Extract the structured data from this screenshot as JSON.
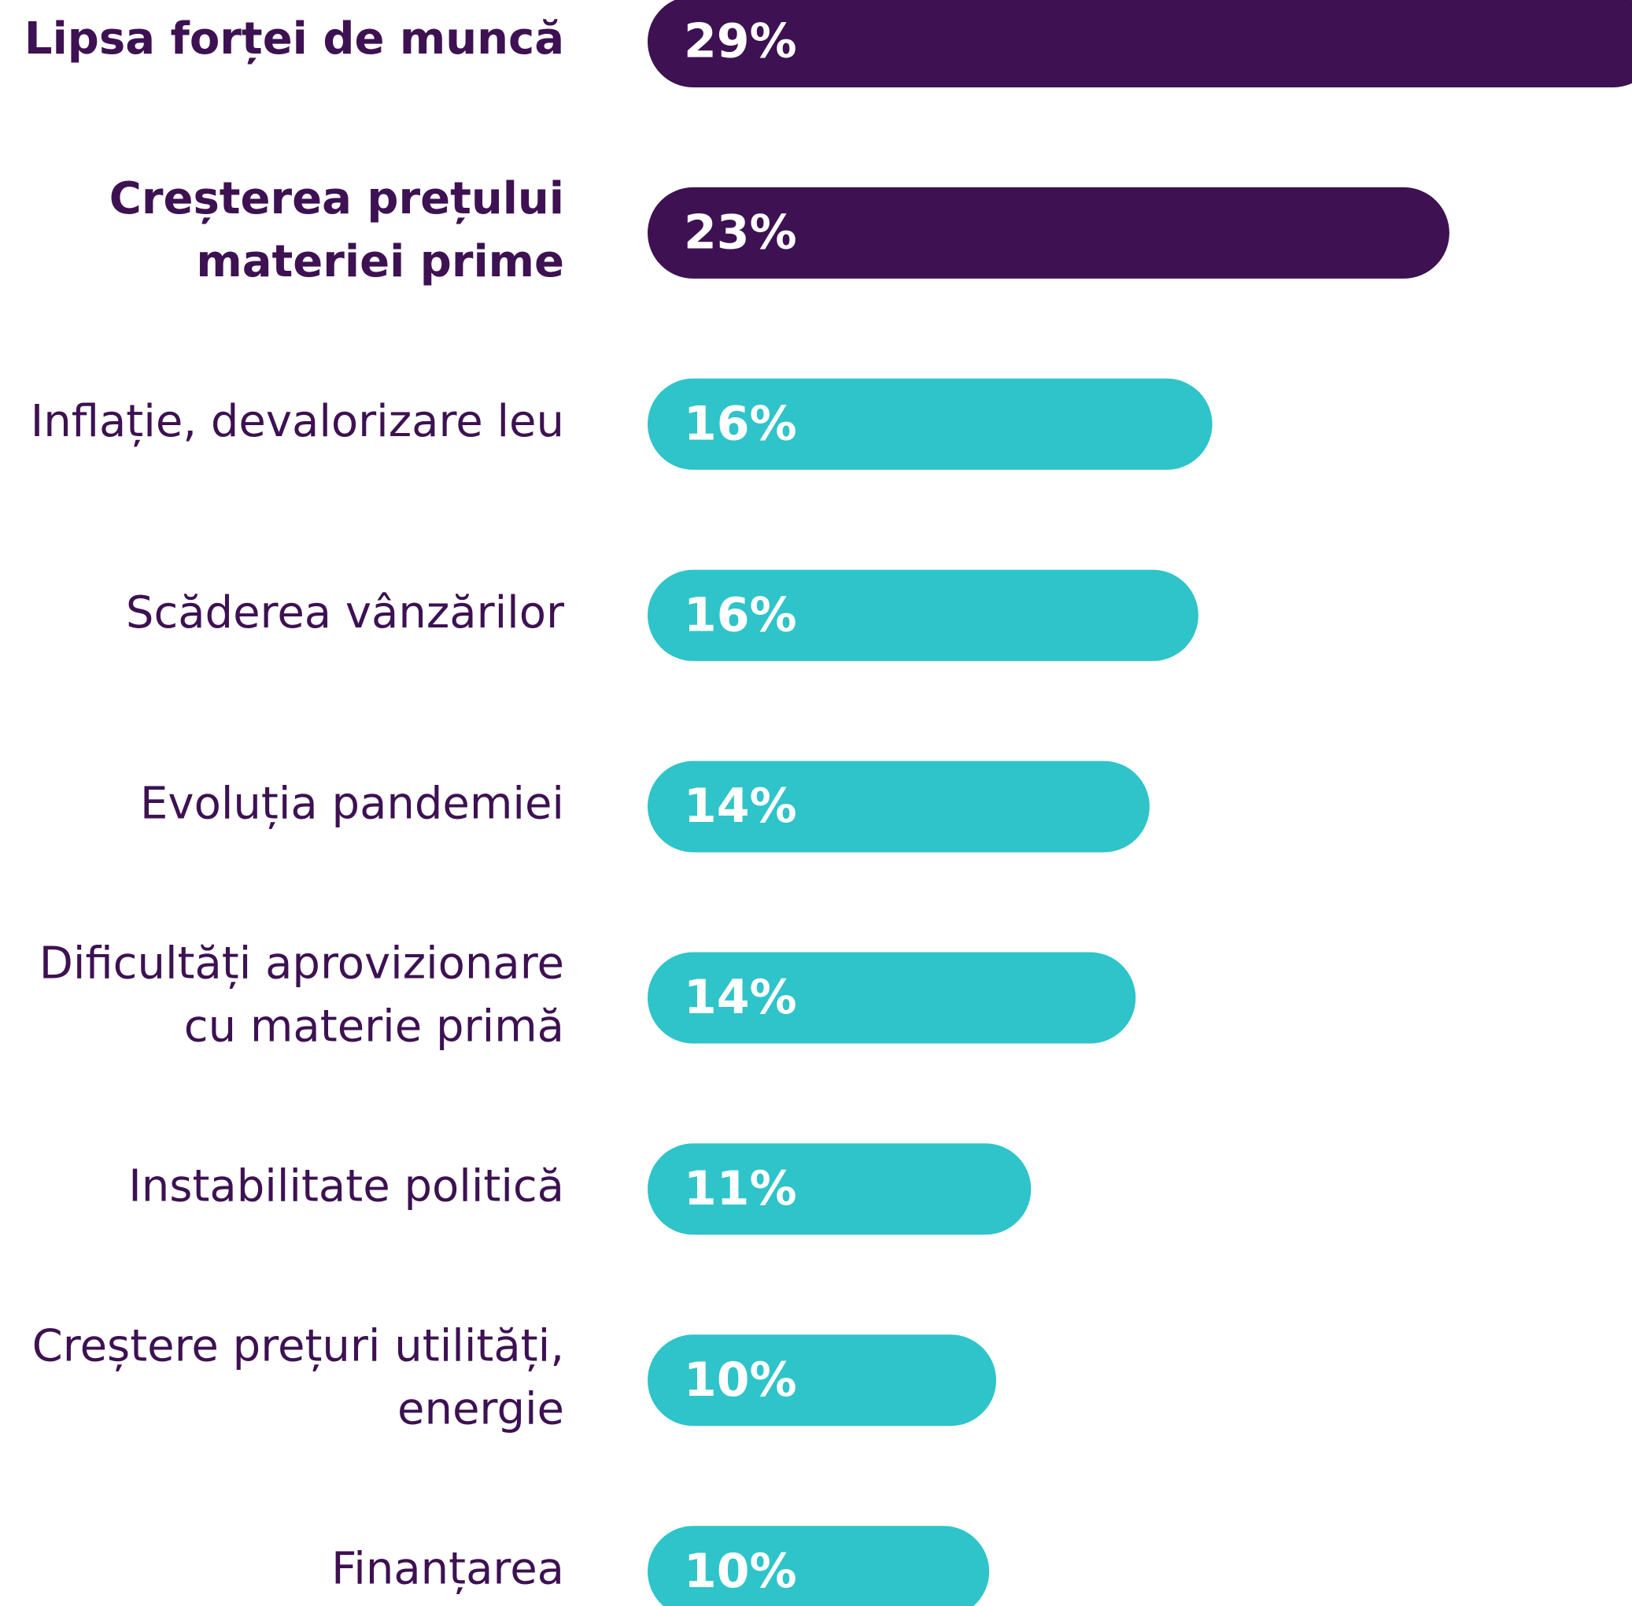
{
  "chart_data": {
    "type": "bar",
    "categories": [
      [
        "Lipsa forței de muncă"
      ],
      [
        "Creșterea prețului",
        "materiei prime"
      ],
      [
        "Inflație, devalorizare leu"
      ],
      [
        "Scăderea vânzărilor"
      ],
      [
        "Evoluția pandemiei"
      ],
      [
        "Dificultăți aprovizionare",
        "cu materie primă"
      ],
      [
        "Instabilitate politică"
      ],
      [
        "Creștere prețuri utilități,",
        "energie"
      ],
      [
        "Finanțarea"
      ]
    ],
    "values": [
      29,
      23,
      16.2,
      15.8,
      14.4,
      14.0,
      11.0,
      10.0,
      9.8
    ],
    "value_labels": [
      "29%",
      "23%",
      "16%",
      "16%",
      "14%",
      "14%",
      "11%",
      "10%",
      "10%"
    ],
    "colors": [
      "#3d1152",
      "#3d1152",
      "#2ec4c9",
      "#2ec4c9",
      "#2ec4c9",
      "#2ec4c9",
      "#2ec4c9",
      "#2ec4c9",
      "#2ec4c9"
    ],
    "bold": [
      true,
      true,
      false,
      false,
      false,
      false,
      false,
      false,
      false
    ]
  }
}
